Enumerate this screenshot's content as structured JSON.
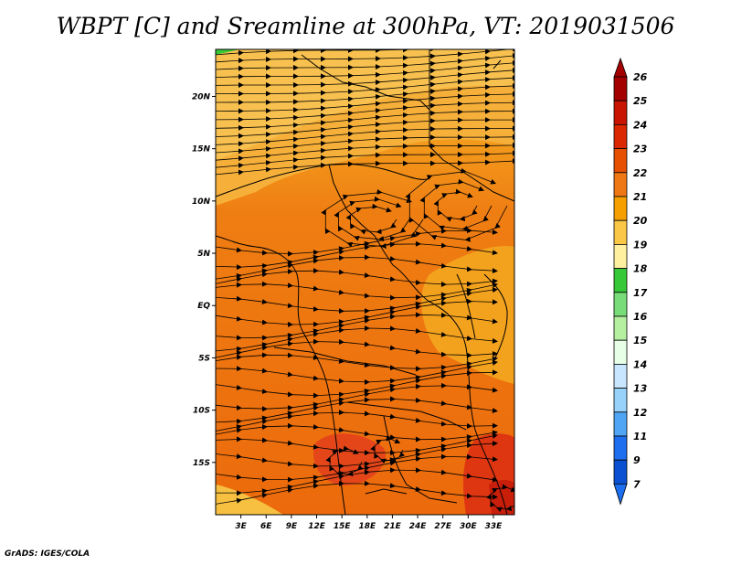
{
  "title": "WBPT [C] and Sreamline at 300hPa, VT: 2019031506",
  "credit": "GrADS: IGES/COLA",
  "map": {
    "lat_range": [
      -20,
      24.5
    ],
    "lon_range": [
      0,
      35.5
    ],
    "lat_ticks": [
      "20N",
      "15N",
      "10N",
      "5N",
      "EQ",
      "5S",
      "10S",
      "15S"
    ],
    "lat_tick_values": [
      20,
      15,
      10,
      5,
      0,
      -5,
      -10,
      -15
    ],
    "lon_ticks": [
      "3E",
      "6E",
      "9E",
      "12E",
      "15E",
      "18E",
      "21E",
      "24E",
      "27E",
      "30E",
      "33E"
    ],
    "lon_tick_values": [
      3,
      6,
      9,
      12,
      15,
      18,
      21,
      24,
      27,
      30,
      33
    ]
  },
  "colorbar": {
    "labels": [
      "26",
      "25",
      "24",
      "23",
      "22",
      "21",
      "20",
      "19",
      "18",
      "17",
      "16",
      "15",
      "14",
      "13",
      "12",
      "11",
      "9",
      "7"
    ],
    "colors": [
      "#a50000",
      "#c81400",
      "#dc2800",
      "#e65000",
      "#f07814",
      "#f5a000",
      "#fac846",
      "#fff0a0",
      "#37c837",
      "#78dc78",
      "#b4f0a0",
      "#e6ffe6",
      "#c8e6ff",
      "#96d2fa",
      "#50a5f5",
      "#1e6ef0",
      "#0a50d2"
    ],
    "top_arrow_color": "#a50000",
    "bottom_arrow_color": "#1e6ef0"
  }
}
